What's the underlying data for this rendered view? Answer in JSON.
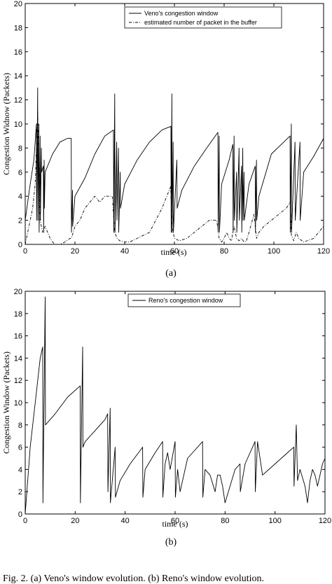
{
  "chart_data": [
    {
      "type": "line",
      "xlabel": "time (s)",
      "ylabel": "Congestion Widnow (Packets)",
      "xlim": [
        0,
        120
      ],
      "ylim": [
        0,
        20
      ],
      "xticks": [
        0,
        20,
        40,
        60,
        80,
        100,
        120
      ],
      "yticks": [
        0,
        2,
        4,
        6,
        8,
        10,
        12,
        14,
        16,
        18,
        20
      ],
      "grid": false,
      "legend_position": "top-right",
      "panel_label": "(a)",
      "series": [
        {
          "name": "Veno's congestion window",
          "style": "solid",
          "x": [
            0,
            2,
            3.5,
            4.5,
            4.6,
            5.0,
            5.1,
            5.5,
            5.6,
            6.0,
            6.1,
            6.5,
            6.6,
            7.3,
            7.4,
            7.6,
            7.7,
            8,
            11,
            14,
            17,
            18.5,
            18.6,
            19.0,
            19.1,
            20,
            24,
            28,
            32,
            35.5,
            35.6,
            36.0,
            36.1,
            36.8,
            36.9,
            37.5,
            37.6,
            38.2,
            38.3,
            40,
            45,
            50,
            55,
            58.6,
            58.7,
            59.0,
            59.1,
            59.5,
            59.6,
            61.0,
            61.1,
            63,
            68,
            73,
            77.5,
            77.6,
            78.0,
            78.1,
            79,
            82,
            83.5,
            83.6,
            84.0,
            84.1,
            85.0,
            85.1,
            86.0,
            86.1,
            87.0,
            87.1,
            87.5,
            87.6,
            88.0,
            88.1,
            90,
            92.5,
            92.6,
            93.0,
            93.1,
            94,
            99,
            104,
            106.5,
            106.6,
            107.0,
            107.1,
            108.5,
            108.6,
            110.5,
            110.6,
            112,
            116,
            120
          ],
          "y": [
            2,
            5,
            7,
            10,
            2,
            13,
            2,
            10,
            1,
            9,
            2,
            8,
            6,
            6.5,
            1,
            7,
            3,
            6,
            7.5,
            8.5,
            8.8,
            8.8,
            1,
            4.5,
            1.5,
            4,
            5.5,
            7.5,
            9,
            9.5,
            1,
            12.5,
            1,
            8.5,
            2,
            8,
            1,
            6,
            3,
            5,
            7,
            8.5,
            9.5,
            9.8,
            1,
            12.5,
            1,
            8.5,
            1,
            7,
            3,
            4.5,
            6.5,
            8,
            9.3,
            1,
            9,
            1,
            5,
            7,
            8.3,
            1,
            9,
            2,
            6,
            1,
            8,
            2,
            6.5,
            1,
            8,
            2,
            6,
            2,
            5,
            6.5,
            1,
            7,
            2,
            4,
            7.5,
            8.5,
            9,
            1,
            10,
            1,
            8.5,
            2,
            8.5,
            2,
            6,
            7.3,
            8.8
          ]
        },
        {
          "name": "estimated number of packet in the buffer",
          "style": "dashed",
          "x": [
            0,
            1,
            2,
            3,
            4,
            5,
            5.5,
            6,
            7,
            8,
            9,
            10,
            11,
            12,
            14,
            16,
            18,
            18.5,
            19,
            20,
            22,
            24,
            26,
            28,
            30,
            32,
            35,
            36,
            37,
            38,
            40,
            42,
            45,
            50,
            55,
            58.5,
            59,
            60,
            62,
            65,
            68,
            71,
            74,
            77,
            78,
            79,
            80,
            81,
            82,
            83,
            83.5,
            84,
            85,
            86,
            87,
            88,
            89,
            90,
            92,
            93,
            94,
            96,
            99,
            102,
            105,
            106.5,
            107,
            108,
            109,
            110,
            112,
            116,
            120
          ],
          "y": [
            0,
            1,
            2,
            3,
            5,
            11,
            7,
            2,
            1,
            1.5,
            1,
            0.5,
            0.2,
            0,
            0,
            0.2,
            0.5,
            0.5,
            0.8,
            1.5,
            2,
            3,
            3.5,
            4,
            3.5,
            4,
            4,
            1,
            0.5,
            0.3,
            0.2,
            0.2,
            0.5,
            1,
            3,
            4.8,
            1.5,
            0.5,
            0.3,
            0.5,
            1,
            1.5,
            2,
            2,
            0.5,
            0.2,
            0.5,
            1,
            0.5,
            0.3,
            1,
            1.5,
            0.5,
            0.3,
            0.5,
            0.2,
            0.3,
            1,
            2.5,
            0.5,
            1,
            1.5,
            2,
            2.5,
            3,
            3.5,
            0.8,
            0.3,
            1,
            0.5,
            0.2,
            0.5,
            1.5
          ]
        }
      ]
    },
    {
      "type": "line",
      "xlabel": "time (s)",
      "ylabel": "Congestion Window (Packets)",
      "xlim": [
        0,
        120
      ],
      "ylim": [
        0,
        20
      ],
      "xticks": [
        0,
        20,
        40,
        60,
        80,
        100,
        120
      ],
      "yticks": [
        0,
        2,
        4,
        6,
        8,
        10,
        12,
        14,
        16,
        18,
        20
      ],
      "grid": false,
      "legend_position": "top-center",
      "panel_label": "(b)",
      "series": [
        {
          "name": "Reno's congestion window",
          "style": "solid",
          "x": [
            0,
            2,
            4,
            6,
            7,
            7.1,
            8,
            8.1,
            12,
            17,
            22,
            22.1,
            23,
            23.1,
            24,
            28,
            32,
            33,
            33.1,
            34,
            34.1,
            36,
            36.1,
            38,
            42,
            47,
            47.1,
            48,
            52,
            55,
            55.1,
            56,
            57,
            58,
            60,
            60.1,
            61,
            62,
            65,
            67,
            71,
            71.1,
            72,
            74,
            76,
            77,
            78,
            79,
            80,
            84,
            86,
            86.1,
            88,
            90,
            92,
            92.1,
            93,
            95,
            100,
            105,
            107.5,
            107.6,
            108.5,
            109,
            110,
            112,
            113,
            114,
            115,
            116,
            117,
            118,
            119,
            120
          ],
          "y": [
            0,
            6,
            10,
            14,
            15,
            1,
            19.5,
            8,
            9,
            10.5,
            11.5,
            1,
            15,
            6,
            6.5,
            7.5,
            8.5,
            9,
            2,
            9.5,
            1,
            6,
            1.5,
            3,
            4.5,
            6,
            1.5,
            4,
            5.5,
            6.5,
            1.5,
            4.5,
            5.5,
            4,
            6.5,
            1.5,
            4,
            2,
            5,
            5.5,
            6.5,
            1.5,
            4,
            3.5,
            2,
            3.5,
            3.5,
            2.5,
            1,
            4,
            4.5,
            2,
            4.5,
            5.5,
            6.5,
            2,
            6.5,
            3.5,
            4.5,
            5.5,
            6,
            2.5,
            8,
            3,
            4,
            2.5,
            1,
            3,
            4,
            3.5,
            2.5,
            3.5,
            4.5,
            5
          ]
        }
      ]
    }
  ],
  "caption": "Fig. 2.   (a) Veno's window evolution. (b) Reno's window evolution."
}
